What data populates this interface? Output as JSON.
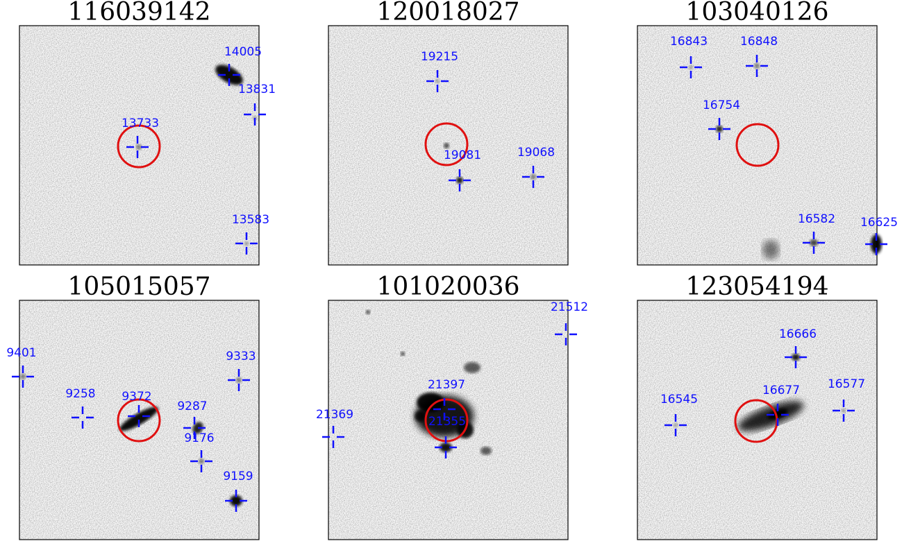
{
  "panels": [
    {
      "title": "116039142",
      "sources": [
        "14005",
        "13831",
        "13733",
        "13583"
      ]
    },
    {
      "title": "120018027",
      "sources": [
        "19215",
        "19081",
        "19068"
      ]
    },
    {
      "title": "103040126",
      "sources": [
        "16843",
        "16848",
        "16754",
        "16582",
        "16625"
      ]
    },
    {
      "title": "105015057",
      "sources": [
        "9401",
        "9258",
        "9372",
        "9333",
        "9287",
        "9176",
        "9159"
      ]
    },
    {
      "title": "101020036",
      "sources": [
        "21512",
        "21397",
        "21355",
        "21369"
      ]
    },
    {
      "title": "123054194",
      "sources": [
        "16666",
        "16677",
        "16577",
        "16545"
      ]
    }
  ]
}
